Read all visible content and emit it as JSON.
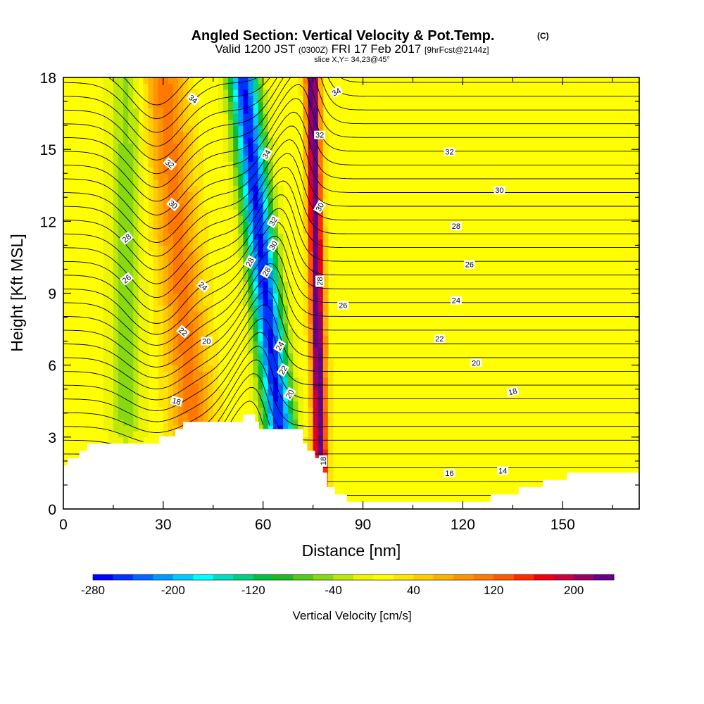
{
  "chart_data": {
    "type": "heatmap",
    "title": "Angled Section: Vertical Velocity & Pot.Temp.",
    "title_mark": "(C)",
    "subtitle_parts": [
      "Valid 1200 JST",
      "(0300Z)",
      "FRI 17 Feb 2017",
      "[9hrFcst@2144z]"
    ],
    "slice_label": "slice X,Y= 34,23@45°",
    "xlabel": "Distance [nm]",
    "ylabel": "Height [Kft MSL]",
    "xlim": [
      0,
      173
    ],
    "ylim": [
      0,
      18
    ],
    "x_ticks": [
      "0",
      "30",
      "60",
      "90",
      "120",
      "150"
    ],
    "x_tick_values": [
      0,
      30,
      60,
      90,
      120,
      150
    ],
    "y_ticks": [
      "0",
      "3",
      "6",
      "9",
      "12",
      "15",
      "18"
    ],
    "y_tick_values": [
      0,
      3,
      6,
      9,
      12,
      15,
      18
    ],
    "colorbar": {
      "label": "Vertical Velocity [cm/s]",
      "range": [
        -280,
        240
      ],
      "step": 20,
      "tick_labels": [
        "-280",
        "-200",
        "-120",
        "-40",
        "40",
        "120",
        "200"
      ],
      "tick_values": [
        -280,
        -200,
        -120,
        -40,
        40,
        120,
        200
      ],
      "colors": [
        "#0000ff",
        "#0033ff",
        "#0066ff",
        "#0099ff",
        "#00ccff",
        "#00ffff",
        "#00e0c0",
        "#00d080",
        "#00c040",
        "#22b822",
        "#55c81a",
        "#88d812",
        "#bbe80a",
        "#eef500",
        "#ffff00",
        "#ffe600",
        "#ffcc00",
        "#ffb000",
        "#ff9400",
        "#ff7800",
        "#ff5a00",
        "#ff2a00",
        "#ee0010",
        "#cc0040",
        "#990066",
        "#660088"
      ]
    },
    "velocity_features": [
      {
        "kind": "updraft",
        "x": 35,
        "z_range": [
          3,
          18
        ],
        "peak_cm_s": 100,
        "tilt_nm_per_kft": -0.6,
        "width_nm": 9
      },
      {
        "kind": "downdraft",
        "x": 60,
        "z_range": [
          3,
          18
        ],
        "peak_cm_s": -270,
        "tilt_nm_per_kft": -0.75,
        "width_nm": 6
      },
      {
        "kind": "updraft",
        "x": 76,
        "z_range": [
          2,
          18
        ],
        "peak_cm_s": 240,
        "tilt_nm_per_kft": -0.15,
        "width_nm": 3
      },
      {
        "kind": "weak downdraft",
        "x": 19,
        "z_range": [
          4,
          16
        ],
        "peak_cm_s": -55,
        "tilt_nm_per_kft": 0,
        "width_nm": 7
      }
    ],
    "terrain_kft": [
      {
        "x": 0,
        "z": 1.9
      },
      {
        "x": 3,
        "z": 2.1
      },
      {
        "x": 6,
        "z": 2.4
      },
      {
        "x": 7,
        "z": 2.6
      },
      {
        "x": 30,
        "z": 2.9
      },
      {
        "x": 33,
        "z": 3.2
      },
      {
        "x": 36,
        "z": 3.5
      },
      {
        "x": 52,
        "z": 3.5
      },
      {
        "x": 53,
        "z": 3.8
      },
      {
        "x": 57,
        "z": 3.8
      },
      {
        "x": 58,
        "z": 3.5
      },
      {
        "x": 61,
        "z": 3.2
      },
      {
        "x": 71,
        "z": 3.2
      },
      {
        "x": 72,
        "z": 2.6
      },
      {
        "x": 75,
        "z": 2.3
      },
      {
        "x": 77,
        "z": 1.7
      },
      {
        "x": 79,
        "z": 1.1
      },
      {
        "x": 81,
        "z": 0.7
      },
      {
        "x": 86,
        "z": 0.3
      },
      {
        "x": 90,
        "z": 0.3
      },
      {
        "x": 100,
        "z": 0.3
      },
      {
        "x": 125,
        "z": 0.3
      },
      {
        "x": 128,
        "z": 0.5
      },
      {
        "x": 138,
        "z": 0.8
      },
      {
        "x": 144,
        "z": 1.1
      },
      {
        "x": 148,
        "z": 1.3
      },
      {
        "x": 158,
        "z": 1.6
      },
      {
        "x": 173,
        "z": 1.6
      }
    ],
    "pot_temp_contours": {
      "interval_c": 2,
      "labels": [
        {
          "text": "34",
          "x": 39,
          "z": 17.1,
          "angle": -40
        },
        {
          "text": "34",
          "x": 82,
          "z": 17.4,
          "angle": 30
        },
        {
          "text": "34",
          "x": 61,
          "z": 14.8,
          "angle": 60
        },
        {
          "text": "32",
          "x": 32,
          "z": 14.4,
          "angle": -40
        },
        {
          "text": "32",
          "x": 77,
          "z": 15.6,
          "angle": 0
        },
        {
          "text": "32",
          "x": 116,
          "z": 14.9,
          "angle": 0
        },
        {
          "text": "32",
          "x": 63,
          "z": 12.0,
          "angle": 60
        },
        {
          "text": "30",
          "x": 33,
          "z": 12.7,
          "angle": -40
        },
        {
          "text": "30",
          "x": 77,
          "z": 12.6,
          "angle": 60
        },
        {
          "text": "30",
          "x": 131,
          "z": 13.3,
          "angle": 0
        },
        {
          "text": "30",
          "x": 63,
          "z": 11.0,
          "angle": 60
        },
        {
          "text": "28",
          "x": 19,
          "z": 11.3,
          "angle": 40
        },
        {
          "text": "28",
          "x": 118,
          "z": 11.8,
          "angle": 0
        },
        {
          "text": "28",
          "x": 56,
          "z": 10.3,
          "angle": 60
        },
        {
          "text": "28",
          "x": 61,
          "z": 9.9,
          "angle": 60
        },
        {
          "text": "28",
          "x": 77,
          "z": 9.5,
          "angle": 90
        },
        {
          "text": "26",
          "x": 19,
          "z": 9.6,
          "angle": 40
        },
        {
          "text": "26",
          "x": 122,
          "z": 10.2,
          "angle": 0
        },
        {
          "text": "26",
          "x": 84,
          "z": 8.5,
          "angle": 0
        },
        {
          "text": "24",
          "x": 42,
          "z": 9.3,
          "angle": -40
        },
        {
          "text": "24",
          "x": 118,
          "z": 8.7,
          "angle": 0
        },
        {
          "text": "24",
          "x": 65,
          "z": 6.8,
          "angle": 60
        },
        {
          "text": "22",
          "x": 36,
          "z": 7.4,
          "angle": -40
        },
        {
          "text": "22",
          "x": 113,
          "z": 7.1,
          "angle": 0
        },
        {
          "text": "22",
          "x": 66,
          "z": 5.8,
          "angle": 60
        },
        {
          "text": "20",
          "x": 43,
          "z": 7.0,
          "angle": 0
        },
        {
          "text": "20",
          "x": 124,
          "z": 6.1,
          "angle": 0
        },
        {
          "text": "20",
          "x": 68,
          "z": 4.8,
          "angle": 60
        },
        {
          "text": "18",
          "x": 34,
          "z": 4.5,
          "angle": -15
        },
        {
          "text": "18",
          "x": 135,
          "z": 4.9,
          "angle": 15
        },
        {
          "text": "18",
          "x": 78,
          "z": 2.0,
          "angle": 90
        },
        {
          "text": "16",
          "x": 116,
          "z": 1.5,
          "angle": 0
        },
        {
          "text": "14",
          "x": 132,
          "z": 1.6,
          "angle": 0
        }
      ]
    }
  }
}
